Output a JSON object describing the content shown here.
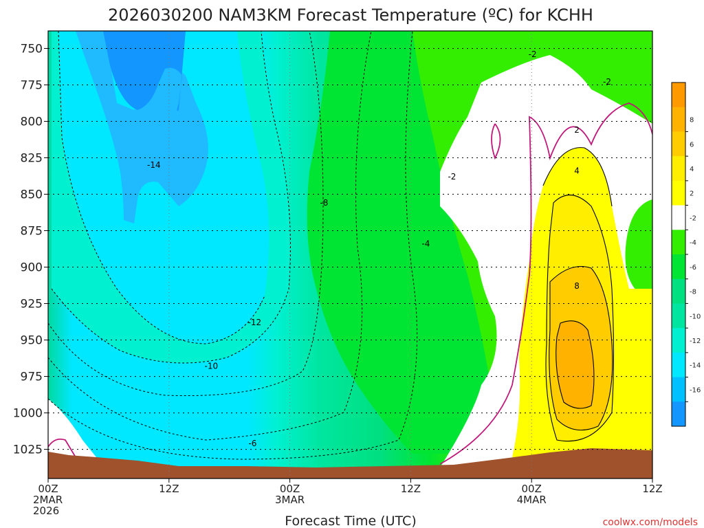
{
  "chart_data": {
    "type": "contour",
    "title": "2026030200 NAM3KM Forecast Temperature (ºC) for KCHH",
    "xlabel": "Forecast Time (UTC)",
    "ylabel": "",
    "watermark": "coolwx.com/models",
    "x_ticks": [
      {
        "label": "00Z",
        "sub1": "2MAR",
        "sub2": "2026",
        "hour": 0
      },
      {
        "label": "12Z",
        "sub1": "",
        "sub2": "",
        "hour": 12
      },
      {
        "label": "00Z",
        "sub1": "3MAR",
        "sub2": "",
        "hour": 24
      },
      {
        "label": "12Z",
        "sub1": "",
        "sub2": "",
        "hour": 36
      },
      {
        "label": "00Z",
        "sub1": "4MAR",
        "sub2": "",
        "hour": 48
      },
      {
        "label": "12Z",
        "sub1": "",
        "sub2": "",
        "hour": 60
      }
    ],
    "y_ticks": [
      "750",
      "775",
      "800",
      "825",
      "850",
      "875",
      "900",
      "925",
      "950",
      "975",
      "1000",
      "1025"
    ],
    "xlim": [
      0,
      60
    ],
    "ylim_hpa": [
      738,
      1045
    ],
    "colorbar": {
      "levels": [
        {
          "label": "",
          "color": "#ff9900"
        },
        {
          "label": "8",
          "color": "#ffb300"
        },
        {
          "label": "6",
          "color": "#ffcc00"
        },
        {
          "label": "4",
          "color": "#ffee00"
        },
        {
          "label": "2",
          "color": "#ffff00"
        },
        {
          "label": "-2",
          "color": "#ffffff"
        },
        {
          "label": "-4",
          "color": "#33ee00"
        },
        {
          "label": "-6",
          "color": "#00e533"
        },
        {
          "label": "-8",
          "color": "#00e080"
        },
        {
          "label": "-10",
          "color": "#00e6a0"
        },
        {
          "label": "-12",
          "color": "#00f0d0"
        },
        {
          "label": "-14",
          "color": "#00e8ff"
        },
        {
          "label": "-16",
          "color": "#00c0ff"
        },
        {
          "label": "",
          "color": "#1496ff"
        }
      ]
    },
    "contour_labels": [
      {
        "text": "-14",
        "hour": 10.5,
        "hpa": 830
      },
      {
        "text": "-12",
        "hour": 20.5,
        "hpa": 938
      },
      {
        "text": "-10",
        "hour": 16.2,
        "hpa": 968
      },
      {
        "text": "-8",
        "hour": 27.4,
        "hpa": 856
      },
      {
        "text": "-6",
        "hour": 20.3,
        "hpa": 1021
      },
      {
        "text": "-4",
        "hour": 37.5,
        "hpa": 884
      },
      {
        "text": "-2",
        "hour": 40.1,
        "hpa": 838
      },
      {
        "text": "-2",
        "hour": 48.1,
        "hpa": 754
      },
      {
        "text": "-2",
        "hour": 55.5,
        "hpa": 773
      },
      {
        "text": "2",
        "hour": 52.5,
        "hpa": 806
      },
      {
        "text": "4",
        "hour": 52.5,
        "hpa": 834
      },
      {
        "text": "8",
        "hour": 52.5,
        "hpa": 913
      }
    ],
    "colors": {
      "terrain": "#a0522d",
      "freezing_line": "#c0187a",
      "grid": "#000000"
    }
  }
}
